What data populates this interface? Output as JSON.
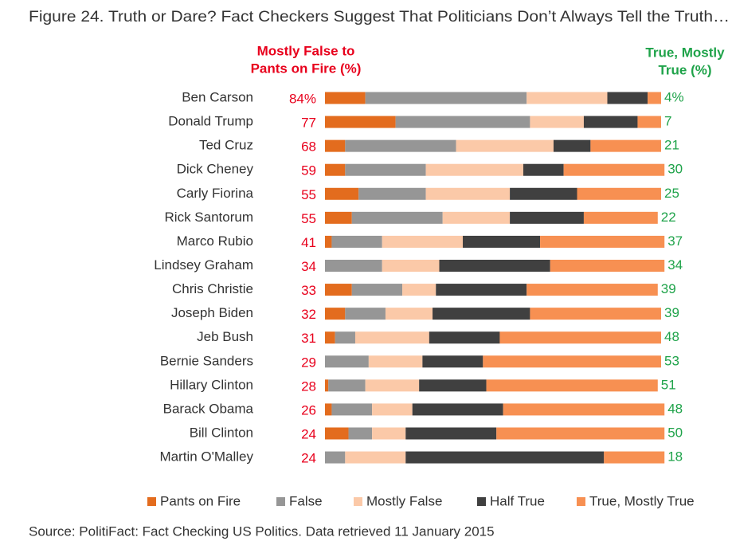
{
  "chart_data": {
    "type": "stacked-bar-horizontal",
    "title": "Figure 24. Truth or Dare? Fact Checkers Suggest That Politicians Don’t Always Tell the Truth…",
    "source": "Source: PolitiFact: Fact Checking US Politics. Data retrieved 11 January 2015",
    "categories": [
      "Ben Carson",
      "Donald Trump",
      "Ted Cruz",
      "Dick Cheney",
      "Carly Fiorina",
      "Rick Santorum",
      "Marco Rubio",
      "Lindsey Graham",
      "Chris Christie",
      "Joseph Biden",
      "Jeb Bush",
      "Bernie Sanders",
      "Hillary Clinton",
      "Barack Obama",
      "Bill Clinton",
      "Martin O'Malley"
    ],
    "xlim": [
      0,
      100
    ],
    "series": [
      {
        "name": "Pants on Fire",
        "color": "#e36c1e",
        "values": [
          12,
          21,
          6,
          6,
          10,
          8,
          2,
          0,
          8,
          6,
          3,
          0,
          1,
          2,
          7,
          0
        ]
      },
      {
        "name": "False",
        "color": "#969696",
        "values": [
          48,
          40,
          33,
          24,
          20,
          27,
          15,
          17,
          15,
          12,
          6,
          13,
          11,
          12,
          7,
          6
        ]
      },
      {
        "name": "Mostly False",
        "color": "#fbc9a8",
        "values": [
          24,
          16,
          29,
          29,
          25,
          20,
          24,
          17,
          10,
          14,
          22,
          16,
          16,
          12,
          10,
          18
        ]
      },
      {
        "name": "Half True",
        "color": "#404040",
        "values": [
          12,
          16,
          11,
          12,
          20,
          22,
          23,
          33,
          27,
          29,
          21,
          18,
          20,
          27,
          27,
          59
        ]
      },
      {
        "name": "True, Mostly True",
        "color": "#f79052",
        "values": [
          4,
          7,
          21,
          30,
          25,
          22,
          37,
          34,
          39,
          39,
          48,
          53,
          51,
          48,
          50,
          18
        ]
      }
    ],
    "left_header": [
      "Mostly  False to",
      "Pants  on Fire (%)"
    ],
    "left_totals": {
      "values": [
        84,
        77,
        68,
        59,
        55,
        55,
        41,
        34,
        33,
        32,
        31,
        29,
        28,
        26,
        24,
        24
      ],
      "value_labels": [
        "84%",
        "77",
        "68",
        "59",
        "55",
        "55",
        "41",
        "34",
        "33",
        "32",
        "31",
        "29",
        "28",
        "26",
        "24",
        "24"
      ]
    },
    "right_header": [
      "True, Mostly",
      "True (%)"
    ],
    "right_totals": {
      "values": [
        4,
        7,
        21,
        30,
        25,
        22,
        37,
        34,
        39,
        39,
        48,
        53,
        51,
        48,
        50,
        18
      ],
      "value_labels": [
        "4%",
        "7",
        "21",
        "30",
        "25",
        "22",
        "37",
        "34",
        "39",
        "39",
        "48",
        "53",
        "51",
        "48",
        "50",
        "18"
      ]
    }
  }
}
